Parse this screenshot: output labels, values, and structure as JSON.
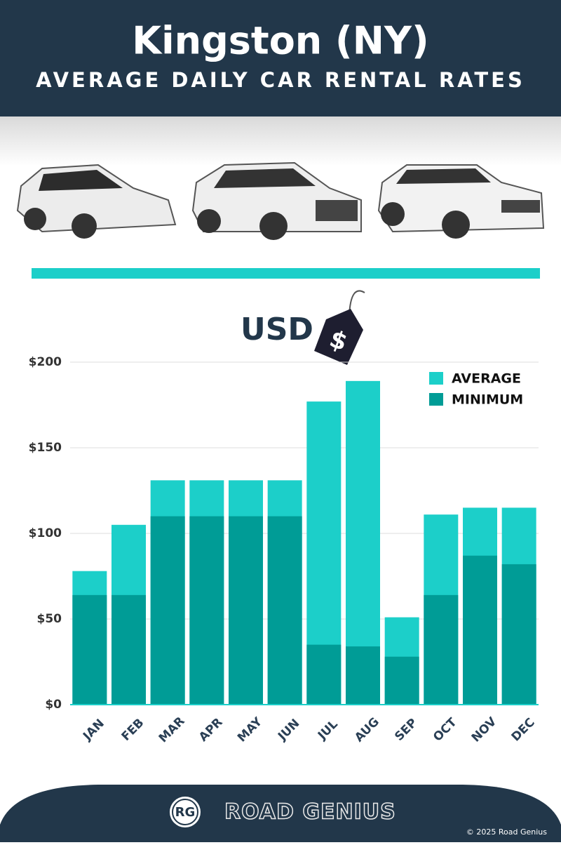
{
  "header": {
    "title": "Kingston (NY)",
    "subtitle": "AVERAGE DAILY CAR RENTAL RATES"
  },
  "currency_tag": {
    "unit": "USD",
    "symbol": "$"
  },
  "chart_data": {
    "type": "overlap-bar",
    "categories": [
      "JAN",
      "FEB",
      "MAR",
      "APR",
      "MAY",
      "JUN",
      "JUL",
      "AUG",
      "SEP",
      "OCT",
      "NOV",
      "DEC"
    ],
    "series": [
      {
        "name": "AVERAGE",
        "color": "#1ccfc9",
        "values": [
          78,
          105,
          131,
          131,
          131,
          131,
          177,
          189,
          51,
          111,
          115,
          115
        ]
      },
      {
        "name": "MINIMUM",
        "color": "#009c96",
        "values": [
          64,
          64,
          110,
          110,
          110,
          110,
          35,
          34,
          28,
          64,
          87,
          82
        ]
      }
    ],
    "ylim": [
      0,
      200
    ],
    "yticks": [
      {
        "value": 0,
        "label": "$0"
      },
      {
        "value": 50,
        "label": "$50"
      },
      {
        "value": 100,
        "label": "$100"
      },
      {
        "value": 150,
        "label": "$150"
      },
      {
        "value": 200,
        "label": "$200"
      }
    ],
    "grid": true,
    "legend": "upper right"
  },
  "footer": {
    "logo": "RG",
    "brand": "ROAD GENIUS",
    "copyright": "© 2025 Road Genius"
  }
}
